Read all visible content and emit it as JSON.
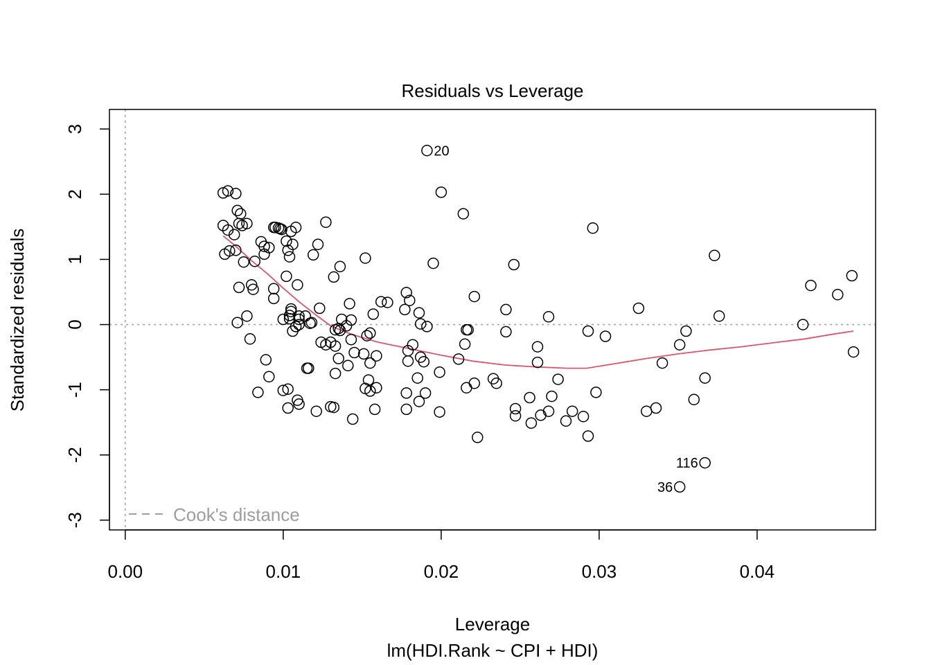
{
  "chart_data": {
    "type": "scatter",
    "title": "Residuals vs Leverage",
    "xlabel": "Leverage",
    "subtitle": "lm(HDI.Rank ~ CPI + HDI)",
    "ylabel": "Standardized residuals",
    "xlim": [
      -0.001,
      0.0475
    ],
    "ylim": [
      -3.15,
      3.3
    ],
    "x_ticks": [
      0.0,
      0.01,
      0.02,
      0.03,
      0.04
    ],
    "x_tick_labels": [
      "0.00",
      "0.01",
      "0.02",
      "0.03",
      "0.04"
    ],
    "y_ticks": [
      -3,
      -2,
      -1,
      0,
      1,
      2,
      3
    ],
    "y_tick_labels": [
      "-3",
      "-2",
      "-1",
      "0",
      "1",
      "2",
      "3"
    ],
    "legend": {
      "label": "Cook's distance",
      "placement": "bottom-left"
    },
    "reference_lines": {
      "h": 0,
      "v": 0
    },
    "colors": {
      "points": "#000000",
      "smooth": "#DF536B",
      "reference": "#9e9e9e",
      "legend": "#9e9e9e"
    },
    "points": [
      [
        0.0062,
        1.52
      ],
      [
        0.0062,
        2.02
      ],
      [
        0.0065,
        2.05
      ],
      [
        0.0065,
        1.45
      ],
      [
        0.0063,
        1.08
      ],
      [
        0.0066,
        1.13
      ],
      [
        0.007,
        2.01
      ],
      [
        0.0069,
        1.38
      ],
      [
        0.0071,
        1.75
      ],
      [
        0.0073,
        1.7
      ],
      [
        0.0072,
        1.55
      ],
      [
        0.0074,
        1.52
      ],
      [
        0.0077,
        1.55
      ],
      [
        0.007,
        1.14
      ],
      [
        0.0075,
        0.96
      ],
      [
        0.0072,
        0.57
      ],
      [
        0.0071,
        0.03
      ],
      [
        0.0077,
        0.13
      ],
      [
        0.008,
        0.61
      ],
      [
        0.0081,
        0.54
      ],
      [
        0.0082,
        0.97
      ],
      [
        0.0079,
        -0.22
      ],
      [
        0.0086,
        1.27
      ],
      [
        0.0088,
        1.2
      ],
      [
        0.0091,
        1.18
      ],
      [
        0.0088,
        1.08
      ],
      [
        0.0094,
        1.49
      ],
      [
        0.0095,
        1.49
      ],
      [
        0.0097,
        1.48
      ],
      [
        0.0098,
        1.47
      ],
      [
        0.0099,
        1.46
      ],
      [
        0.0102,
        1.28
      ],
      [
        0.0105,
        1.43
      ],
      [
        0.0108,
        1.49
      ],
      [
        0.0106,
        1.23
      ],
      [
        0.0103,
        1.14
      ],
      [
        0.0104,
        1.04
      ],
      [
        0.0102,
        0.74
      ],
      [
        0.0109,
        0.61
      ],
      [
        0.0094,
        0.55
      ],
      [
        0.0094,
        0.4
      ],
      [
        0.0105,
        0.24
      ],
      [
        0.0105,
        0.2
      ],
      [
        0.0104,
        0.14
      ],
      [
        0.01,
        0.08
      ],
      [
        0.0104,
        0.09
      ],
      [
        0.011,
        0.08
      ],
      [
        0.011,
        0.0
      ],
      [
        0.0108,
        -0.03
      ],
      [
        0.0106,
        -0.1
      ],
      [
        0.011,
        0.13
      ],
      [
        0.0114,
        0.13
      ],
      [
        0.0118,
        0.03
      ],
      [
        0.0117,
        0.02
      ],
      [
        0.0089,
        -0.54
      ],
      [
        0.0091,
        -0.8
      ],
      [
        0.0084,
        -1.04
      ],
      [
        0.01,
        -1.01
      ],
      [
        0.0103,
        -0.99
      ],
      [
        0.0109,
        -1.16
      ],
      [
        0.011,
        -1.22
      ],
      [
        0.0103,
        -1.28
      ],
      [
        0.0115,
        -0.67
      ],
      [
        0.0116,
        -0.67
      ],
      [
        0.0121,
        -1.33
      ],
      [
        0.013,
        -1.26
      ],
      [
        0.0132,
        -1.27
      ],
      [
        0.0122,
        1.23
      ],
      [
        0.0119,
        1.07
      ],
      [
        0.0127,
        1.57
      ],
      [
        0.0123,
        0.25
      ],
      [
        0.0124,
        -0.27
      ],
      [
        0.0127,
        -0.31
      ],
      [
        0.013,
        -0.27
      ],
      [
        0.0133,
        -0.33
      ],
      [
        0.0132,
        0.73
      ],
      [
        0.0136,
        0.89
      ],
      [
        0.0133,
        -0.08
      ],
      [
        0.0135,
        -0.06
      ],
      [
        0.0136,
        -0.09
      ],
      [
        0.0137,
        0.08
      ],
      [
        0.014,
        -0.02
      ],
      [
        0.0143,
        0.07
      ],
      [
        0.0142,
        0.32
      ],
      [
        0.0143,
        -0.23
      ],
      [
        0.0145,
        -0.43
      ],
      [
        0.0135,
        -0.52
      ],
      [
        0.0141,
        -0.63
      ],
      [
        0.0133,
        -0.75
      ],
      [
        0.0144,
        -1.45
      ],
      [
        0.0152,
        1.02
      ],
      [
        0.0157,
        0.16
      ],
      [
        0.0162,
        0.35
      ],
      [
        0.0166,
        0.34
      ],
      [
        0.0153,
        -0.17
      ],
      [
        0.0155,
        -0.13
      ],
      [
        0.0151,
        -0.45
      ],
      [
        0.0155,
        -0.59
      ],
      [
        0.0159,
        -0.48
      ],
      [
        0.0154,
        -0.85
      ],
      [
        0.0152,
        -0.98
      ],
      [
        0.0155,
        -1.02
      ],
      [
        0.0159,
        -0.97
      ],
      [
        0.0158,
        -1.3
      ],
      [
        0.0177,
        0.23
      ],
      [
        0.0178,
        0.49
      ],
      [
        0.018,
        0.37
      ],
      [
        0.0186,
        0.18
      ],
      [
        0.0187,
        0.01
      ],
      [
        0.0191,
        -0.03
      ],
      [
        0.0179,
        -0.4
      ],
      [
        0.0182,
        -0.31
      ],
      [
        0.0187,
        -0.5
      ],
      [
        0.0189,
        -0.57
      ],
      [
        0.0179,
        -0.56
      ],
      [
        0.0185,
        -0.82
      ],
      [
        0.0178,
        -1.05
      ],
      [
        0.019,
        -1.05
      ],
      [
        0.0186,
        -1.18
      ],
      [
        0.0178,
        -1.3
      ],
      [
        0.0199,
        -1.34
      ],
      [
        0.0199,
        -0.73
      ],
      [
        0.0191,
        2.67
      ],
      [
        0.02,
        2.03
      ],
      [
        0.0214,
        1.7
      ],
      [
        0.0195,
        0.94
      ],
      [
        0.0221,
        0.43
      ],
      [
        0.0216,
        -0.08
      ],
      [
        0.0217,
        -0.08
      ],
      [
        0.0215,
        -0.3
      ],
      [
        0.0211,
        -0.53
      ],
      [
        0.0221,
        -0.9
      ],
      [
        0.0216,
        -0.97
      ],
      [
        0.0223,
        -1.73
      ],
      [
        0.0246,
        0.92
      ],
      [
        0.0241,
        0.23
      ],
      [
        0.0241,
        -0.11
      ],
      [
        0.0233,
        -0.83
      ],
      [
        0.0235,
        -0.9
      ],
      [
        0.0247,
        -1.29
      ],
      [
        0.0247,
        -1.4
      ],
      [
        0.0261,
        -0.34
      ],
      [
        0.0261,
        -0.58
      ],
      [
        0.0268,
        0.12
      ],
      [
        0.0274,
        -0.84
      ],
      [
        0.0256,
        -1.12
      ],
      [
        0.027,
        -1.1
      ],
      [
        0.0263,
        -1.39
      ],
      [
        0.0268,
        -1.33
      ],
      [
        0.0257,
        -1.51
      ],
      [
        0.0283,
        -1.33
      ],
      [
        0.0279,
        -1.48
      ],
      [
        0.029,
        -1.41
      ],
      [
        0.0296,
        1.48
      ],
      [
        0.0293,
        -0.1
      ],
      [
        0.0304,
        -0.18
      ],
      [
        0.0298,
        -1.04
      ],
      [
        0.0293,
        -1.71
      ],
      [
        0.0325,
        0.25
      ],
      [
        0.033,
        -1.33
      ],
      [
        0.0336,
        -1.28
      ],
      [
        0.034,
        -0.59
      ],
      [
        0.0355,
        -0.1
      ],
      [
        0.0351,
        -0.31
      ],
      [
        0.036,
        -1.15
      ],
      [
        0.0367,
        -0.82
      ],
      [
        0.0373,
        1.06
      ],
      [
        0.0376,
        0.13
      ],
      [
        0.0367,
        -2.12
      ],
      [
        0.0351,
        -2.49
      ],
      [
        0.0429,
        0.0
      ],
      [
        0.0434,
        0.6
      ],
      [
        0.0451,
        0.46
      ],
      [
        0.046,
        0.75
      ],
      [
        0.0461,
        -0.42
      ]
    ],
    "point_labels": [
      {
        "text": "20",
        "x": 0.0191,
        "y": 2.67,
        "side": "right"
      },
      {
        "text": "116",
        "x": 0.0367,
        "y": -2.12,
        "side": "left"
      },
      {
        "text": "36",
        "x": 0.0351,
        "y": -2.49,
        "side": "left"
      }
    ],
    "smooth_line": [
      [
        0.0062,
        1.36
      ],
      [
        0.007,
        1.2
      ],
      [
        0.008,
        0.98
      ],
      [
        0.009,
        0.78
      ],
      [
        0.01,
        0.56
      ],
      [
        0.011,
        0.35
      ],
      [
        0.012,
        0.16
      ],
      [
        0.013,
        -0.02
      ],
      [
        0.014,
        -0.12
      ],
      [
        0.015,
        -0.2
      ],
      [
        0.016,
        -0.27
      ],
      [
        0.018,
        -0.37
      ],
      [
        0.02,
        -0.47
      ],
      [
        0.022,
        -0.56
      ],
      [
        0.024,
        -0.62
      ],
      [
        0.026,
        -0.65
      ],
      [
        0.028,
        -0.67
      ],
      [
        0.0292,
        -0.67
      ],
      [
        0.031,
        -0.6
      ],
      [
        0.033,
        -0.52
      ],
      [
        0.035,
        -0.45
      ],
      [
        0.037,
        -0.39
      ],
      [
        0.039,
        -0.34
      ],
      [
        0.041,
        -0.28
      ],
      [
        0.043,
        -0.22
      ],
      [
        0.045,
        -0.14
      ],
      [
        0.0461,
        -0.1
      ]
    ]
  }
}
